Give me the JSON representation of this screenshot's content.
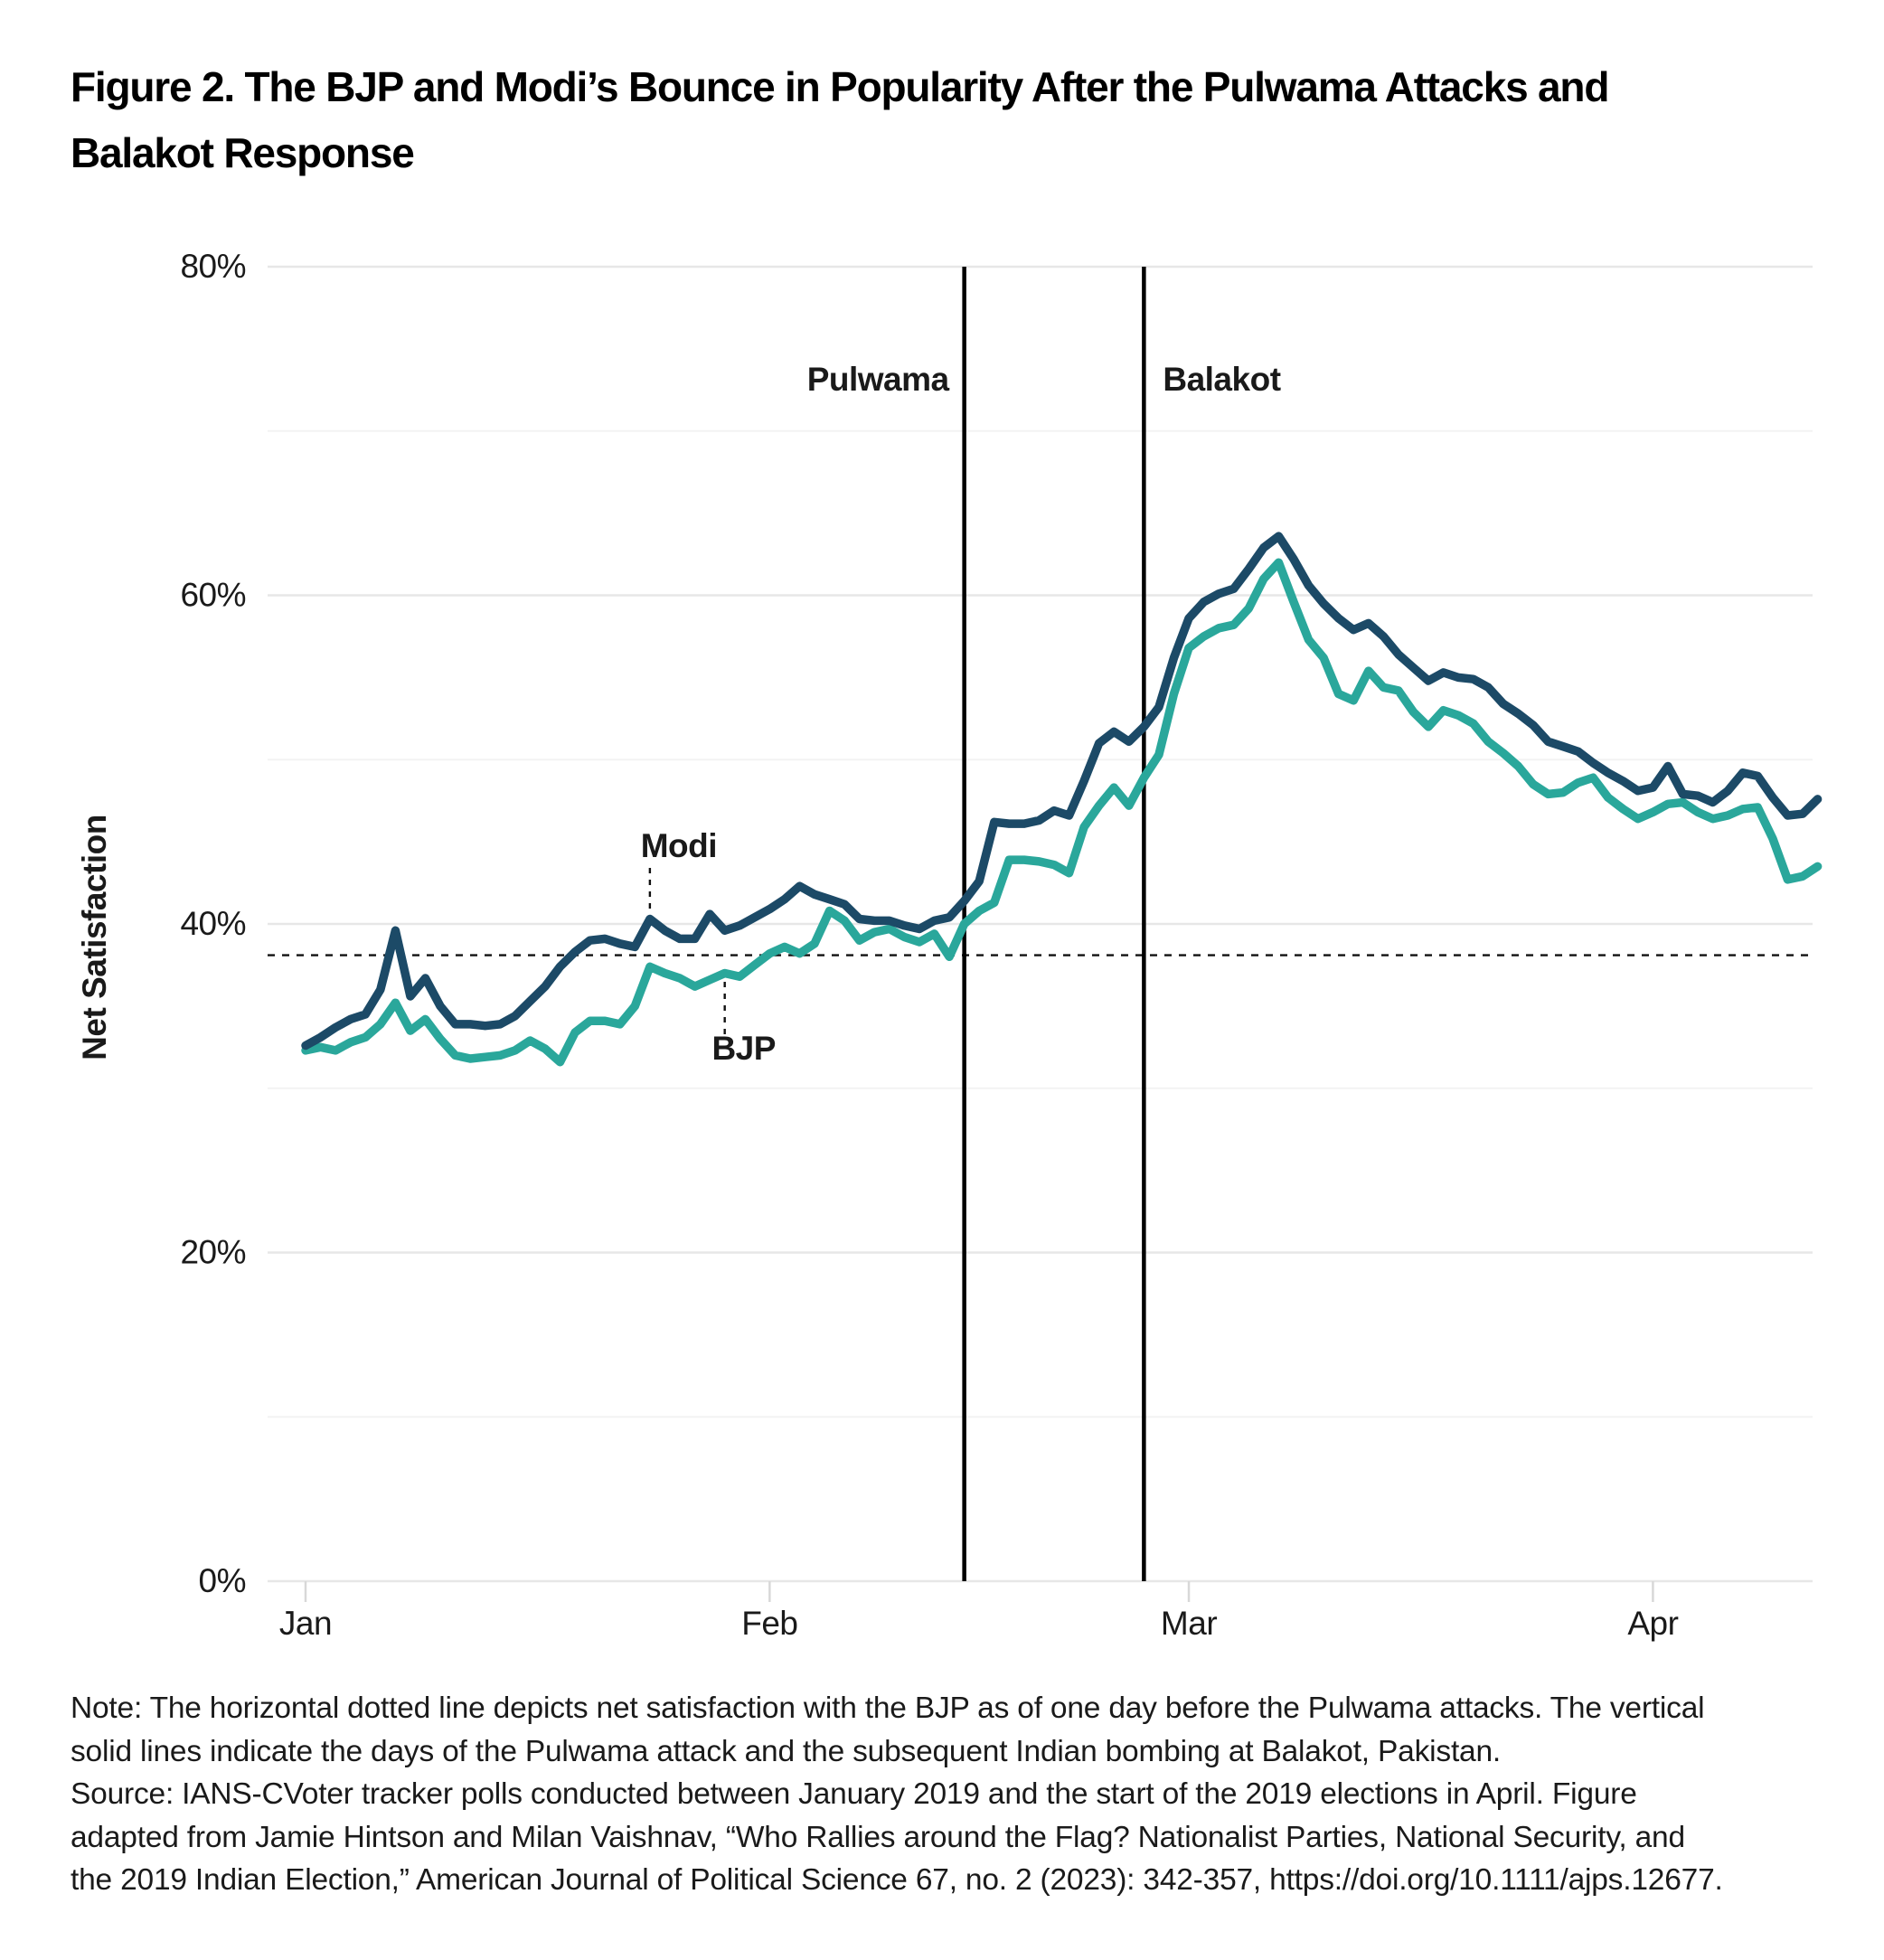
{
  "header": {
    "title_line1": "Figure 2. The BJP and Modi’s Bounce in Popularity After the Pulwama Attacks and",
    "title_line2": "Balakot Response"
  },
  "chart_data": {
    "type": "line",
    "title": "The BJP and Modi's Bounce in Popularity After the Pulwama Attacks and Balakot Response",
    "xlabel": "",
    "ylabel": "Net Satisfaction",
    "ylim": [
      0,
      80
    ],
    "x_unit": "day (daily tracker polls, Jan 1 – Apr 12, 2019)",
    "x_tick_labels": [
      "Jan",
      "Feb",
      "Mar",
      "Apr"
    ],
    "x_tick_indices": [
      0,
      31,
      59,
      90
    ],
    "y_tick_labels": [
      "80%",
      "60%",
      "40%",
      "20%",
      "0%"
    ],
    "y_tick_values": [
      80,
      60,
      40,
      20,
      0
    ],
    "y_minor_values": [
      70,
      50,
      30,
      10
    ],
    "grid": "horizontal, light gray, minor lines fainter",
    "legend_position": "inline labels with dotted leaders",
    "reference_line": {
      "value": 38.1,
      "style": "dotted",
      "color": "#111111",
      "meaning": "Net satisfaction with the BJP as of one day before the Pulwama attacks (Feb 13)"
    },
    "events": [
      {
        "label": "Pulwama",
        "index": 44,
        "date": "Feb 14"
      },
      {
        "label": "Balakot",
        "index": 56,
        "date": "Feb 26"
      }
    ],
    "series_labels": [
      {
        "text": "Modi",
        "anchor_index": 23
      },
      {
        "text": "BJP",
        "anchor_index": 28
      }
    ],
    "series": [
      {
        "name": "BJP",
        "color": "#2aa79b",
        "values": [
          32.3,
          32.5,
          32.3,
          32.8,
          33.1,
          33.9,
          35.2,
          33.5,
          34.2,
          33.0,
          32.0,
          31.8,
          31.9,
          32.0,
          32.3,
          32.9,
          32.4,
          31.6,
          33.4,
          34.1,
          34.1,
          33.9,
          35.0,
          37.4,
          37.0,
          36.7,
          36.2,
          36.6,
          37.0,
          36.8,
          37.5,
          38.2,
          38.6,
          38.2,
          38.8,
          40.8,
          40.2,
          39.0,
          39.5,
          39.7,
          39.2,
          38.9,
          39.4,
          38.0,
          40.0,
          40.8,
          41.3,
          43.9,
          43.9,
          43.8,
          43.6,
          43.1,
          45.9,
          47.2,
          48.3,
          47.2,
          48.9,
          50.3,
          54.0,
          56.8,
          57.5,
          58.0,
          58.2,
          59.2,
          61.0,
          62.0,
          59.6,
          57.3,
          56.2,
          54.0,
          53.6,
          55.4,
          54.4,
          54.2,
          52.9,
          52.0,
          53.0,
          52.7,
          52.2,
          51.1,
          50.4,
          49.6,
          48.5,
          47.9,
          48.0,
          48.6,
          48.9,
          47.7,
          47.0,
          46.4,
          46.8,
          47.3,
          47.4,
          46.8,
          46.4,
          46.6,
          47.0,
          47.1,
          45.2,
          42.7,
          42.9,
          43.5
        ]
      },
      {
        "name": "Modi",
        "color": "#1c4a67",
        "values": [
          32.6,
          33.1,
          33.7,
          34.2,
          34.5,
          36.0,
          39.6,
          35.6,
          36.7,
          35.0,
          33.9,
          33.9,
          33.8,
          33.9,
          34.4,
          35.3,
          36.2,
          37.4,
          38.3,
          39.0,
          39.1,
          38.8,
          38.6,
          40.3,
          39.6,
          39.1,
          39.1,
          40.6,
          39.6,
          39.9,
          40.4,
          40.9,
          41.5,
          42.3,
          41.8,
          41.5,
          41.2,
          40.3,
          40.2,
          40.2,
          39.9,
          39.7,
          40.2,
          40.4,
          41.4,
          42.6,
          46.2,
          46.1,
          46.1,
          46.3,
          46.9,
          46.6,
          48.7,
          51.0,
          51.7,
          51.1,
          52.0,
          53.2,
          56.2,
          58.6,
          59.6,
          60.1,
          60.4,
          61.6,
          62.9,
          63.6,
          62.2,
          60.6,
          59.5,
          58.6,
          57.9,
          58.3,
          57.5,
          56.4,
          55.6,
          54.8,
          55.3,
          55.0,
          54.9,
          54.4,
          53.4,
          52.8,
          52.1,
          51.1,
          50.8,
          50.5,
          49.8,
          49.2,
          48.7,
          48.1,
          48.3,
          49.6,
          47.9,
          47.8,
          47.4,
          48.1,
          49.2,
          49.0,
          47.7,
          46.6,
          46.7,
          47.6
        ]
      }
    ]
  },
  "notes": {
    "lines": [
      "Note: The horizontal dotted line depicts net satisfaction with the BJP as of one day before the Pulwama attacks. The vertical",
      "solid lines indicate the days of the Pulwama attack and the subsequent Indian bombing at Balakot, Pakistan.",
      "Source: IANS-CVoter tracker polls conducted between January 2019 and the start of the 2019 elections in April. Figure",
      "adapted from Jamie Hintson and Milan Vaishnav, “Who Rallies around the Flag? Nationalist Parties, National Security, and",
      "the 2019 Indian Election,” American Journal of Political Science 67, no. 2 (2023): 342-357, https://doi.org/10.1111/ajps.12677."
    ]
  },
  "colors": {
    "modi_line": "#1c4a67",
    "bjp_line": "#2aa79b",
    "event_line": "#000000",
    "major_grid": "#e7e7e7",
    "minor_grid": "#f3f3f3",
    "tick": "#d8d8d8",
    "text": "#1a1a1a"
  }
}
